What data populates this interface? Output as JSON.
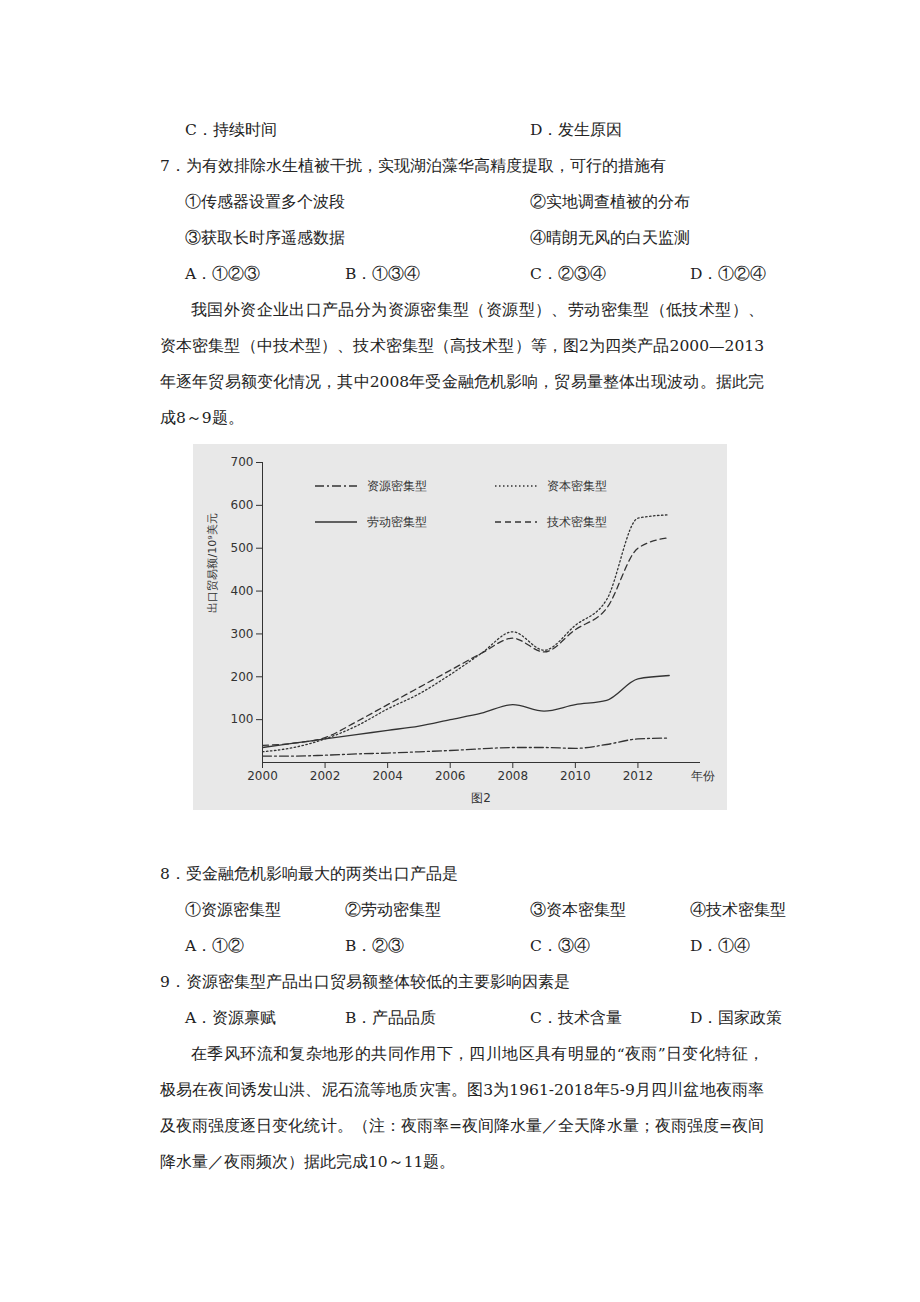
{
  "document": {
    "blocks": [
      {
        "type": "options",
        "items": [
          "C．持续时间",
          "D．发生原因"
        ]
      },
      {
        "type": "line",
        "text": "7．为有效排除水生植被干扰，实现湖泊藻华高精度提取，可行的措施有"
      },
      {
        "type": "options",
        "items": [
          "①传感器设置多个波段",
          "②实地调查植被的分布"
        ]
      },
      {
        "type": "options",
        "items": [
          "③获取长时序遥感数据",
          "④晴朗无风的白天监测"
        ]
      },
      {
        "type": "options",
        "items": [
          "A．①②③",
          "B．①③④",
          "C．②③④",
          "D．①②④"
        ]
      },
      {
        "type": "paragraph",
        "text": "我国外资企业出口产品分为资源密集型（资源型）、劳动密集型（低技术型）、资本密集型（中技术型）、技术密集型（高技术型）等，图2为四类产品2000—2013年逐年贸易额变化情况，其中2008年受金融危机影响，贸易量整体出现波动。据此完成8～9题。"
      },
      {
        "type": "figure"
      },
      {
        "type": "line",
        "text": "8．受金融危机影响最大的两类出口产品是"
      },
      {
        "type": "options",
        "items": [
          "①资源密集型",
          "②劳动密集型",
          "③资本密集型",
          "④技术密集型"
        ]
      },
      {
        "type": "options",
        "items": [
          "A．①②",
          "B．②③",
          "C．③④",
          "D．①④"
        ]
      },
      {
        "type": "line",
        "text": "9．资源密集型产品出口贸易额整体较低的主要影响因素是"
      },
      {
        "type": "options",
        "items": [
          "A．资源禀赋",
          "B．产品品质",
          "C．技术含量",
          "D．国家政策"
        ]
      },
      {
        "type": "paragraph",
        "text": "在季风环流和复杂地形的共同作用下，四川地区具有明显的“夜雨”日变化特征，极易在夜间诱发山洪、泥石流等地质灾害。图3为1961-2018年5-9月四川盆地夜雨率及夜雨强度逐日变化统计。（注：夜雨率=夜间降水量／全天降水量；夜雨强度=夜间降水量／夜雨频次）据此完成10～11题。"
      }
    ]
  },
  "chart_data": {
    "type": "line",
    "caption": "图2",
    "x_label": "年份",
    "y_label": "出口贸易额/10⁹美元",
    "x": [
      2000,
      2001,
      2002,
      2003,
      2004,
      2005,
      2006,
      2007,
      2008,
      2009,
      2010,
      2011,
      2012,
      2013
    ],
    "series": [
      {
        "name": "资源密集型",
        "color": "#333333",
        "line_style": "dashdot",
        "values": [
          15,
          15,
          17,
          20,
          22,
          25,
          28,
          32,
          35,
          35,
          33,
          42,
          55,
          57
        ]
      },
      {
        "name": "劳动密集型",
        "color": "#333333",
        "line_style": "solid",
        "values": [
          35,
          45,
          55,
          65,
          75,
          85,
          100,
          115,
          135,
          120,
          135,
          145,
          195,
          203
        ]
      },
      {
        "name": "资本密集型",
        "color": "#333333",
        "line_style": "dotted",
        "values": [
          25,
          35,
          55,
          85,
          125,
          160,
          205,
          255,
          305,
          262,
          320,
          380,
          570,
          578
        ]
      },
      {
        "name": "技术密集型",
        "color": "#333333",
        "line_style": "dashed",
        "values": [
          40,
          45,
          58,
          95,
          135,
          175,
          215,
          255,
          290,
          258,
          310,
          360,
          500,
          525
        ]
      }
    ],
    "xlim": [
      2000,
      2014
    ],
    "xticks": [
      2000,
      2002,
      2004,
      2006,
      2008,
      2010,
      2012
    ],
    "ylim": [
      0,
      700
    ],
    "yticks": [
      100,
      200,
      300,
      400,
      500,
      600,
      700
    ],
    "grid": false,
    "legend": "top"
  }
}
